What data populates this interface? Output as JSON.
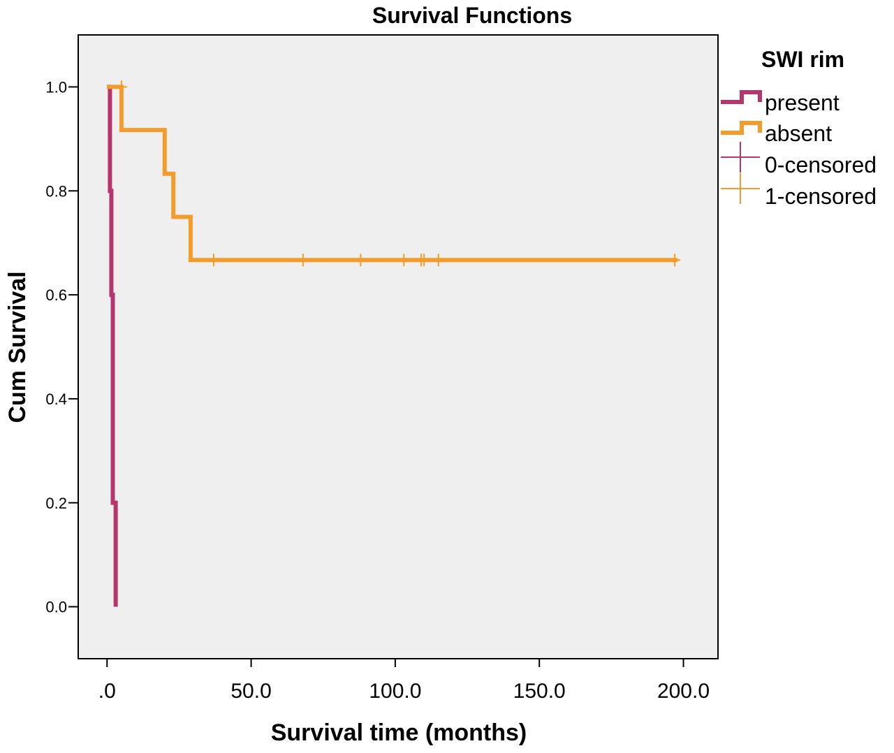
{
  "chart_data": {
    "type": "line",
    "step": true,
    "title": "Survival Functions",
    "xlabel": "Survival time (months)",
    "ylabel": "Cum Survival",
    "xlim": [
      -10,
      212
    ],
    "ylim": [
      -0.1,
      1.1
    ],
    "xticks": [
      0,
      50,
      100,
      150,
      200
    ],
    "xtick_labels": [
      ".0",
      "50.0",
      "100.0",
      "150.0",
      "200.0"
    ],
    "yticks": [
      0,
      0.2,
      0.4,
      0.6,
      0.8,
      1.0
    ],
    "ytick_labels": [
      "0.0",
      "0.2",
      "0.4",
      "0.6",
      "0.8",
      "1.0"
    ],
    "grid": false,
    "background": "#efefef",
    "legend": {
      "title": "SWI rim",
      "placement": "right",
      "entries": [
        {
          "label": "present",
          "kind": "line",
          "color": "#b5366b"
        },
        {
          "label": "absent",
          "kind": "line",
          "color": "#f39c2b"
        },
        {
          "label": "0-censored",
          "kind": "censor",
          "color": "#b5366b"
        },
        {
          "label": "1-censored",
          "kind": "censor",
          "color": "#f39c2b"
        }
      ]
    },
    "series": [
      {
        "name": "present",
        "color": "#b5366b",
        "x": [
          0,
          1,
          1,
          1.5,
          1.5,
          2,
          2,
          3,
          3
        ],
        "y": [
          1.0,
          1.0,
          0.8,
          0.8,
          0.6,
          0.6,
          0.2,
          0.2,
          0.0
        ],
        "censored_x": []
      },
      {
        "name": "absent",
        "color": "#f39c2b",
        "x": [
          0,
          5,
          5,
          20,
          20,
          23,
          23,
          29,
          29,
          198
        ],
        "y": [
          1.0,
          1.0,
          0.917,
          0.917,
          0.833,
          0.833,
          0.75,
          0.75,
          0.667,
          0.667
        ],
        "censored_x": [
          5,
          37,
          68,
          88,
          103,
          109,
          110,
          115,
          197
        ],
        "censored_y": [
          1.0,
          0.667,
          0.667,
          0.667,
          0.667,
          0.667,
          0.667,
          0.667,
          0.667
        ]
      }
    ]
  }
}
